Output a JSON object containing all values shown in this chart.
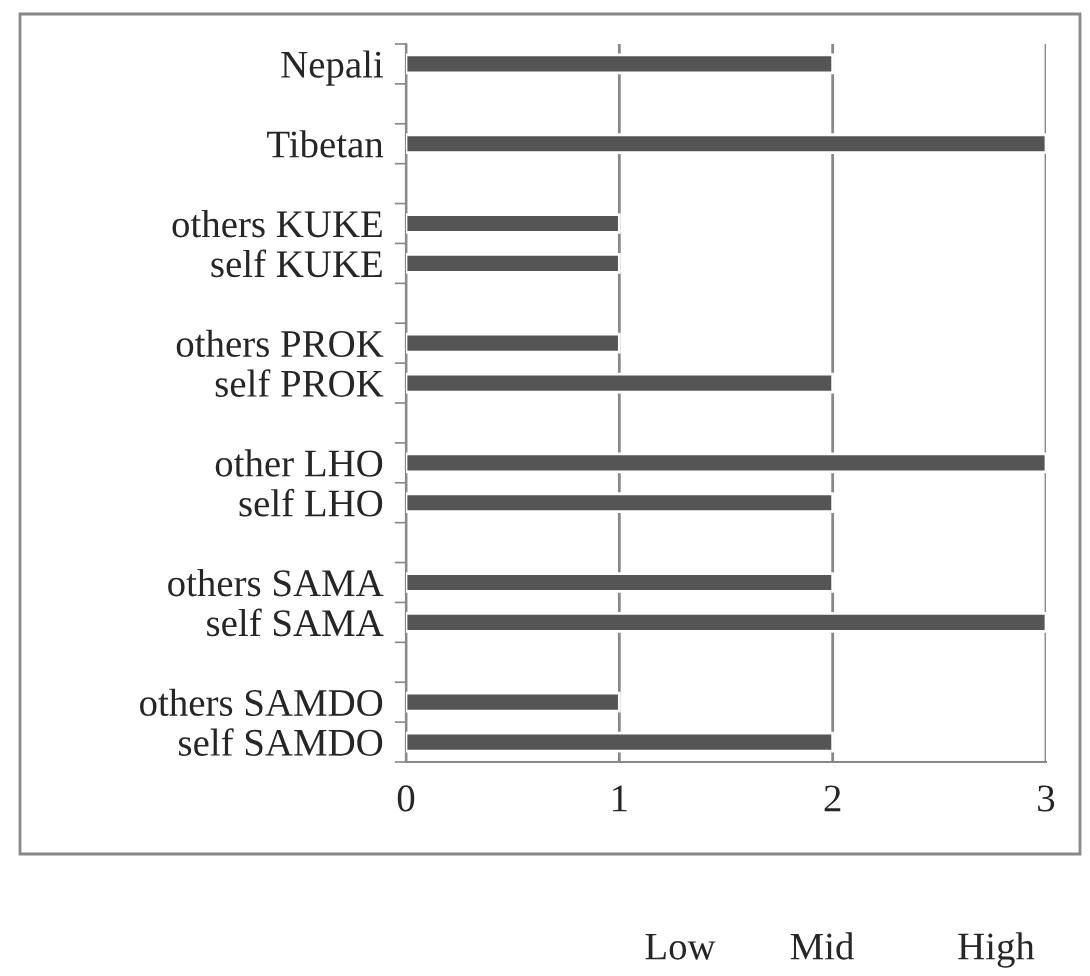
{
  "chart_data": {
    "type": "bar",
    "orientation": "horizontal",
    "categories": [
      "Nepali",
      null,
      "Tibetan",
      null,
      "others KUKE",
      "self KUKE",
      null,
      "others PROK",
      "self PROK",
      null,
      "other LHO",
      "self LHO",
      null,
      "others SAMA",
      "self SAMA",
      null,
      "others SAMDO",
      "self SAMDO"
    ],
    "values": [
      2,
      null,
      3,
      null,
      1,
      1,
      null,
      1,
      2,
      null,
      3,
      2,
      null,
      2,
      3,
      null,
      1,
      2
    ],
    "color": "#555555",
    "xlim": [
      0,
      3
    ],
    "xticks": [
      0,
      1,
      2,
      3
    ],
    "grid": "x",
    "annotations": [
      "Low",
      "Mid",
      "High"
    ]
  }
}
